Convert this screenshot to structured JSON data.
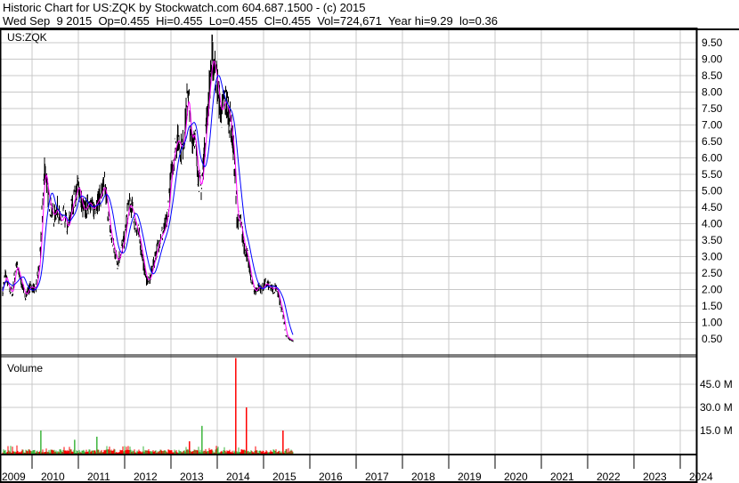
{
  "header": {
    "title": "Historic Chart for US:ZQK by Stockwatch.com 604.687.1500 - (c) 2015",
    "quote": "Wed Sep  9 2015  Op=0.455  Hi=0.455  Lo=0.455  Cl=0.455  Vol=724,671  Year hi=9.29  lo=0.36"
  },
  "chart_data": [
    {
      "type": "line",
      "title": "US:ZQK",
      "ylim": [
        0,
        9.75
      ],
      "y_ticks": [
        "0.50",
        "1.00",
        "1.50",
        "2.00",
        "2.50",
        "3.00",
        "3.50",
        "4.00",
        "4.50",
        "5.00",
        "5.50",
        "6.00",
        "6.50",
        "7.00",
        "7.50",
        "8.00",
        "8.50",
        "9.00",
        "9.50"
      ],
      "x_ticks": [
        "2009",
        "2010",
        "2011",
        "2012",
        "2013",
        "2014",
        "2015",
        "2016",
        "2017",
        "2018",
        "2019",
        "2020",
        "2021",
        "2022",
        "2023",
        "2024"
      ],
      "grid": true,
      "colors": {
        "price": "#000000",
        "ma_short": "#ff00ff",
        "ma_long": "#0000ff"
      },
      "series": [
        {
          "x": [
            2009.35,
            2009.42,
            2009.5,
            2009.58,
            2009.65,
            2009.73,
            2009.85,
            2009.96,
            2010.08,
            2010.17,
            2010.23,
            2010.27,
            2010.33,
            2010.38,
            2010.46,
            2010.54,
            2010.62,
            2010.69,
            2010.77,
            2010.85,
            2010.92,
            2011.0,
            2011.08,
            2011.15,
            2011.23,
            2011.31,
            2011.38,
            2011.46,
            2011.56,
            2011.62,
            2011.69,
            2011.77,
            2011.85,
            2011.92,
            2012.0,
            2012.08,
            2012.15,
            2012.23,
            2012.31,
            2012.38,
            2012.46,
            2012.54,
            2012.62,
            2012.69,
            2012.77,
            2012.85,
            2012.92,
            2013.0,
            2013.08,
            2013.15,
            2013.23,
            2013.31,
            2013.37,
            2013.42,
            2013.5,
            2013.58,
            2013.65,
            2013.73,
            2013.79,
            2013.85,
            2013.88,
            2013.94,
            2014.0,
            2014.08,
            2014.15,
            2014.23,
            2014.31,
            2014.37,
            2014.42,
            2014.5,
            2014.58,
            2014.65,
            2014.73,
            2014.81,
            2014.88,
            2014.96,
            2015.04,
            2015.12,
            2015.19,
            2015.27,
            2015.35,
            2015.42,
            2015.48,
            2015.56,
            2015.65
          ],
          "y": [
            1.8,
            2.5,
            2.0,
            1.9,
            2.8,
            2.4,
            1.8,
            2.1,
            2.0,
            3.0,
            4.8,
            5.8,
            5.0,
            4.6,
            4.2,
            4.5,
            4.0,
            4.3,
            3.8,
            4.5,
            4.8,
            5.2,
            4.5,
            4.4,
            4.7,
            4.4,
            4.6,
            4.8,
            5.2,
            4.6,
            3.7,
            3.2,
            2.8,
            3.2,
            3.6,
            4.6,
            4.5,
            4.0,
            3.6,
            3.0,
            2.3,
            2.3,
            2.8,
            3.2,
            3.6,
            3.8,
            4.2,
            5.5,
            6.3,
            6.6,
            6.2,
            7.0,
            8.2,
            6.5,
            6.8,
            5.5,
            5.0,
            6.5,
            7.5,
            8.5,
            9.1,
            8.8,
            8.2,
            7.3,
            7.8,
            7.5,
            6.8,
            5.8,
            4.2,
            4.0,
            3.3,
            3.0,
            2.3,
            1.9,
            2.1,
            2.0,
            2.2,
            2.1,
            2.0,
            2.1,
            1.6,
            1.2,
            0.6,
            0.5,
            0.42
          ]
        }
      ]
    },
    {
      "type": "bar",
      "title": "Volume",
      "y_ticks": [
        "15.0 M",
        "30.0 M",
        "45.0 M"
      ],
      "colors": {
        "up": "#3cb53c",
        "down": "#ff0000"
      },
      "notable_volumes_millions": [
        {
          "x": 2010.19,
          "value": 15,
          "dir": "up"
        },
        {
          "x": 2010.92,
          "value": 9,
          "dir": "up"
        },
        {
          "x": 2011.4,
          "value": 11,
          "dir": "up"
        },
        {
          "x": 2013.4,
          "value": 8,
          "dir": "down"
        },
        {
          "x": 2013.67,
          "value": 18,
          "dir": "up"
        },
        {
          "x": 2014.4,
          "value": 62,
          "dir": "down"
        },
        {
          "x": 2014.63,
          "value": 30,
          "dir": "down"
        },
        {
          "x": 2015.42,
          "value": 15,
          "dir": "down"
        }
      ]
    }
  ]
}
